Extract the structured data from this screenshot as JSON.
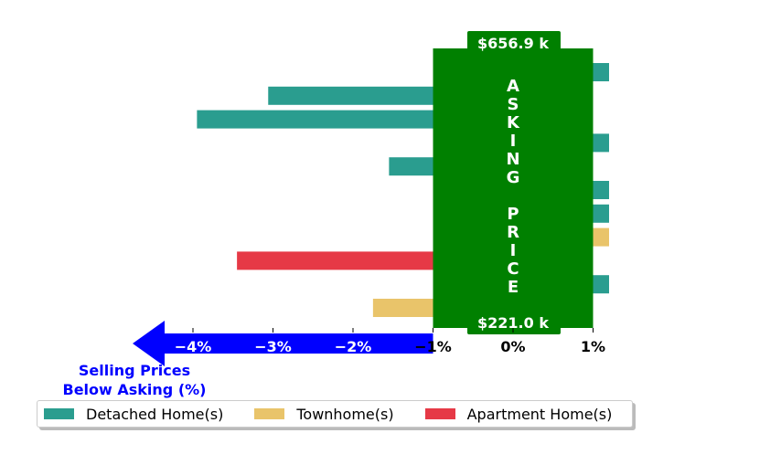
{
  "chart_data": {
    "type": "bar",
    "orientation": "horizontal",
    "x_range": [
      -5,
      1
    ],
    "x_tick_labels": [
      "−4%",
      "−3%",
      "−2%",
      "−1%",
      "0%",
      "1%"
    ],
    "x_tick_values": [
      -4,
      -3,
      -2,
      -1,
      0,
      1
    ],
    "axis_caption": "Selling Prices\nBelow Asking (%)",
    "asking_price_label": "A\nS\nK\nI\nN\nG\n\nP\nR\nI\nC\nE",
    "price_high_label": "$656.9 k",
    "price_low_label": "$221.0 k",
    "grid": false,
    "series": [
      {
        "name": "Detached Home(s)",
        "color": "#2a9d8f"
      },
      {
        "name": "Townhome(s)",
        "color": "#e9c46a"
      },
      {
        "name": "Apartment Home(s)",
        "color": "#e63946"
      }
    ],
    "bars": [
      {
        "series": 0,
        "value": 1.2
      },
      {
        "series": 0,
        "value": -3.06
      },
      {
        "series": 0,
        "value": -3.95
      },
      {
        "series": 0,
        "value": 1.2
      },
      {
        "series": 0,
        "value": -1.55
      },
      {
        "series": 0,
        "value": 1.2
      },
      {
        "series": 0,
        "value": 1.2
      },
      {
        "series": 1,
        "value": 1.2
      },
      {
        "series": 2,
        "value": -3.45
      },
      {
        "series": 0,
        "value": 1.2
      },
      {
        "series": 1,
        "value": -1.75
      }
    ],
    "colors": {
      "asking_box": "#008000",
      "arrow": "#0000ff",
      "caption": "#0000ff"
    }
  }
}
